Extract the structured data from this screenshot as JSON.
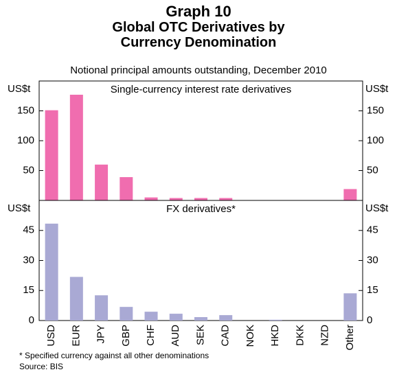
{
  "title": "Graph 10",
  "heading": "Global OTC Derivatives by Currency Denomination",
  "subtitle": "Notional principal amounts outstanding, December 2010",
  "categories": [
    "USD",
    "EUR",
    "JPY",
    "GBP",
    "CHF",
    "AUD",
    "SEK",
    "CAD",
    "NOK",
    "HKD",
    "DKK",
    "NZD",
    "Other"
  ],
  "footnote": "*  Specified currency against all other denominations",
  "source": "Source: BIS",
  "chart_data": [
    {
      "type": "bar",
      "title": "Single-currency interest rate derivatives",
      "y_label": "US$t",
      "color": "#f06daf",
      "values": [
        151,
        177,
        60,
        39,
        5,
        4,
        4,
        4,
        0,
        0,
        0,
        0,
        19
      ],
      "ylim": [
        0,
        200
      ],
      "yticks": [
        50,
        100,
        150
      ]
    },
    {
      "type": "bar",
      "title": "FX derivatives*",
      "y_label": "US$t",
      "color": "#a9a9d4",
      "values": [
        48.4,
        21.8,
        12.6,
        6.8,
        4.4,
        3.4,
        1.7,
        2.7,
        0,
        0.4,
        0,
        0,
        13.6
      ],
      "ylim": [
        0,
        60
      ],
      "yticks": [
        0,
        15,
        30,
        45
      ]
    }
  ]
}
